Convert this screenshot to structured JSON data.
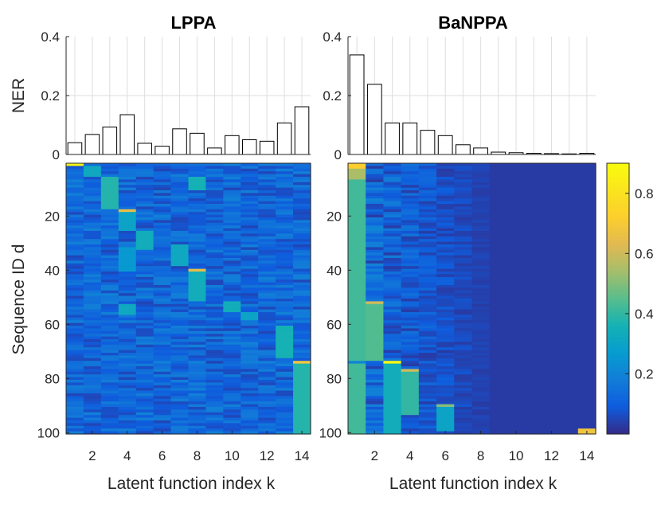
{
  "chart_data": [
    {
      "type": "bar",
      "title": "LPPA",
      "ylabel": "NER",
      "ylim": [
        0,
        0.4
      ],
      "yticks": [
        "0",
        "0.2",
        "0.4"
      ],
      "categories": [
        1,
        2,
        3,
        4,
        5,
        6,
        7,
        8,
        9,
        10,
        11,
        12,
        13,
        14
      ],
      "values": [
        0.04,
        0.068,
        0.093,
        0.135,
        0.038,
        0.028,
        0.087,
        0.072,
        0.022,
        0.064,
        0.05,
        0.045,
        0.107,
        0.162
      ],
      "grid": true
    },
    {
      "type": "bar",
      "title": "BaNPPA",
      "ylim": [
        0,
        0.4
      ],
      "yticks": [
        "0",
        "0.2",
        "0.4"
      ],
      "categories": [
        1,
        2,
        3,
        4,
        5,
        6,
        7,
        8,
        9,
        10,
        11,
        12,
        13,
        14
      ],
      "values": [
        0.338,
        0.238,
        0.107,
        0.107,
        0.082,
        0.064,
        0.033,
        0.022,
        0.008,
        0.006,
        0.004,
        0.003,
        0.002,
        0.004
      ],
      "grid": true
    },
    {
      "type": "heatmap",
      "ylabel": "Sequence ID d",
      "xlabel": "Latent function index k",
      "xticks": [
        "2",
        "4",
        "6",
        "8",
        "10",
        "12",
        "14"
      ],
      "yticks": [
        "20",
        "40",
        "60",
        "80",
        "100"
      ],
      "rows": 100,
      "cols": 14,
      "background_level": 0.05,
      "blocks": [
        {
          "col": 1,
          "from": 1,
          "to": 1,
          "value": 0.88
        },
        {
          "col": 2,
          "from": 2,
          "to": 5,
          "value": 0.32
        },
        {
          "col": 3,
          "from": 6,
          "to": 17,
          "value": 0.38
        },
        {
          "col": 4,
          "from": 18,
          "to": 18,
          "value": 0.65
        },
        {
          "col": 4,
          "from": 19,
          "to": 25,
          "value": 0.3
        },
        {
          "col": 4,
          "from": 32,
          "to": 40,
          "value": 0.26
        },
        {
          "col": 4,
          "from": 53,
          "to": 56,
          "value": 0.32
        },
        {
          "col": 5,
          "from": 26,
          "to": 32,
          "value": 0.34
        },
        {
          "col": 7,
          "from": 31,
          "to": 38,
          "value": 0.32
        },
        {
          "col": 8,
          "from": 6,
          "to": 10,
          "value": 0.36
        },
        {
          "col": 8,
          "from": 40,
          "to": 40,
          "value": 0.65
        },
        {
          "col": 8,
          "from": 41,
          "to": 51,
          "value": 0.34
        },
        {
          "col": 10,
          "from": 52,
          "to": 55,
          "value": 0.34
        },
        {
          "col": 11,
          "from": 56,
          "to": 58,
          "value": 0.3
        },
        {
          "col": 13,
          "from": 61,
          "to": 72,
          "value": 0.36
        },
        {
          "col": 14,
          "from": 74,
          "to": 74,
          "value": 0.68
        },
        {
          "col": 14,
          "from": 75,
          "to": 100,
          "value": 0.38
        }
      ]
    },
    {
      "type": "heatmap",
      "xlabel": "Latent function index k",
      "xticks": [
        "2",
        "4",
        "6",
        "8",
        "10",
        "12",
        "14"
      ],
      "yticks": [
        "20",
        "40",
        "60",
        "80",
        "100"
      ],
      "rows": 100,
      "cols": 14,
      "background_level": 0.03,
      "blocks": [
        {
          "col": 1,
          "from": 1,
          "to": 2,
          "value": 0.72
        },
        {
          "col": 1,
          "from": 3,
          "to": 6,
          "value": 0.55
        },
        {
          "col": 1,
          "from": 7,
          "to": 73,
          "value": 0.42
        },
        {
          "col": 1,
          "from": 75,
          "to": 100,
          "value": 0.42
        },
        {
          "col": 2,
          "from": 52,
          "to": 52,
          "value": 0.6
        },
        {
          "col": 2,
          "from": 53,
          "to": 73,
          "value": 0.44
        },
        {
          "col": 3,
          "from": 74,
          "to": 74,
          "value": 0.88
        },
        {
          "col": 3,
          "from": 75,
          "to": 100,
          "value": 0.34
        },
        {
          "col": 4,
          "from": 77,
          "to": 77,
          "value": 0.6
        },
        {
          "col": 4,
          "from": 78,
          "to": 93,
          "value": 0.4
        },
        {
          "col": 6,
          "from": 90,
          "to": 90,
          "value": 0.5
        },
        {
          "col": 6,
          "from": 91,
          "to": 99,
          "value": 0.3
        },
        {
          "col": 14,
          "from": 99,
          "to": 100,
          "value": 0.68
        }
      ]
    }
  ],
  "colorbar": {
    "ticks": [
      "0.2",
      "0.4",
      "0.6",
      "0.8"
    ],
    "range": [
      0,
      0.9
    ]
  }
}
